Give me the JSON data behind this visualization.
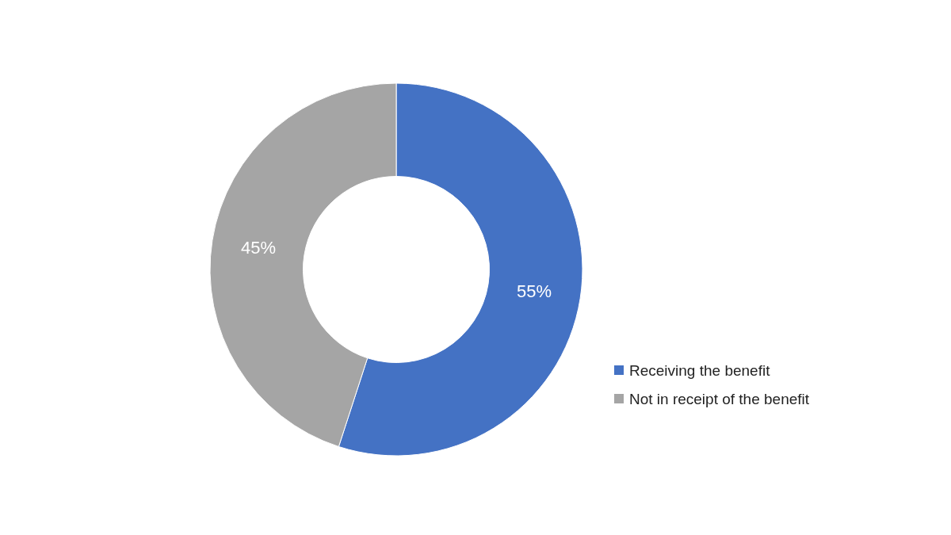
{
  "chart_data": {
    "type": "donut",
    "categories": [
      "Receiving the benefit",
      "Not in receipt of the benefit"
    ],
    "values": [
      55,
      45
    ],
    "colors": [
      "#4472c4",
      "#a5a5a5"
    ],
    "value_labels": [
      "55%",
      "45%"
    ],
    "legend": "right"
  }
}
